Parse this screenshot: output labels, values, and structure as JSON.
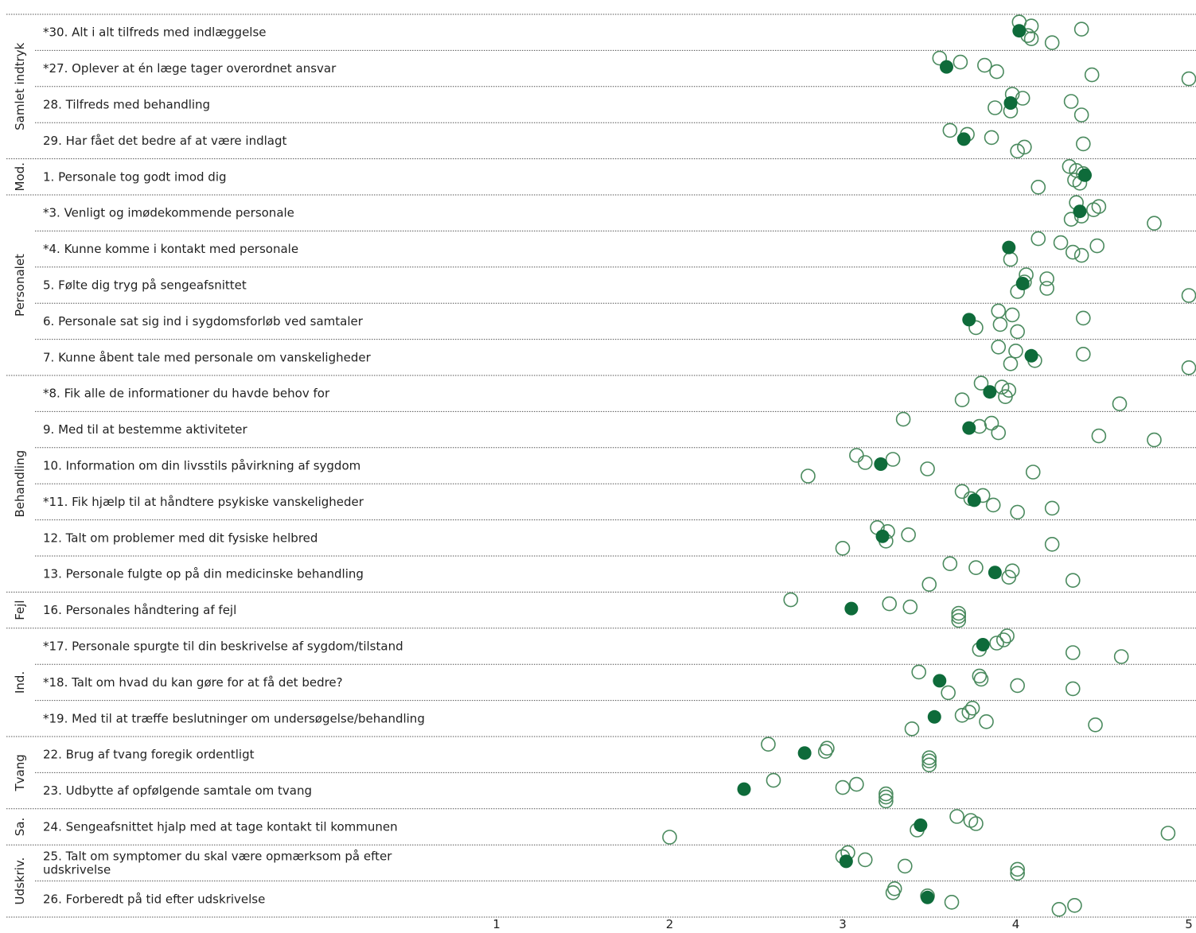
{
  "chart_data": {
    "type": "scatter",
    "title": "",
    "xlabel": "",
    "ylabel": "",
    "xlim": [
      0,
      5
    ],
    "xticks": [
      "1",
      "2",
      "3",
      "4",
      "5"
    ],
    "grid": true,
    "colors": {
      "highlight": "#0e6b3a",
      "others": "#4a8a5e",
      "grid": "#555555"
    },
    "groups": [
      {
        "name": "Samlet indtryk",
        "rows": [
          0,
          3
        ]
      },
      {
        "name": "Mod.",
        "rows": [
          4,
          4
        ]
      },
      {
        "name": "Personalet",
        "rows": [
          5,
          9
        ]
      },
      {
        "name": "Behandling",
        "rows": [
          10,
          15
        ]
      },
      {
        "name": "Fejl",
        "rows": [
          16,
          16
        ]
      },
      {
        "name": "Ind.",
        "rows": [
          17,
          19
        ]
      },
      {
        "name": "Tvang",
        "rows": [
          20,
          21
        ]
      },
      {
        "name": "Sa.",
        "rows": [
          22,
          22
        ]
      },
      {
        "name": "Udskriv.",
        "rows": [
          23,
          24
        ]
      }
    ],
    "questions": [
      {
        "label": "*30. Alt i alt tilfreds med indlæggelse",
        "value": 4.02,
        "others": [
          4.02,
          4.09,
          4.38,
          4.07,
          4.09,
          4.21
        ]
      },
      {
        "label": "*27. Oplever at én læge tager overordnet ansvar",
        "value": 3.6,
        "others": [
          3.56,
          3.68,
          3.82,
          3.89,
          4.44,
          5.0
        ]
      },
      {
        "label": "28. Tilfreds med behandling",
        "value": 3.97,
        "others": [
          3.98,
          4.04,
          4.32,
          3.88,
          3.97,
          4.38
        ]
      },
      {
        "label": "29. Har fået det bedre af at være indlagt",
        "value": 3.7,
        "others": [
          3.62,
          3.72,
          3.86,
          4.39,
          4.05,
          4.01
        ]
      },
      {
        "label": "1. Personale tog godt imod dig",
        "value": 4.4,
        "others": [
          4.31,
          4.35,
          4.39,
          4.34,
          4.37,
          4.13
        ]
      },
      {
        "label": "*3. Venligt og imødekommende personale",
        "value": 4.37,
        "others": [
          4.35,
          4.48,
          4.45,
          4.38,
          4.32,
          4.8
        ]
      },
      {
        "label": "*4. Kunne komme i kontakt med personale",
        "value": 3.96,
        "others": [
          4.13,
          4.26,
          4.47,
          4.33,
          4.38,
          3.97
        ]
      },
      {
        "label": "5. Følte dig tryg på sengeafsnittet",
        "value": 4.04,
        "others": [
          4.06,
          4.18,
          4.05,
          4.18,
          4.01,
          5.0
        ]
      },
      {
        "label": "6. Personale sat sig ind i sygdomsforløb ved samtaler",
        "value": 3.73,
        "others": [
          3.9,
          3.98,
          4.39,
          3.91,
          3.77,
          4.01
        ]
      },
      {
        "label": "7. Kunne åbent tale med personale om vanskeligheder",
        "value": 4.09,
        "others": [
          3.9,
          4.0,
          4.39,
          4.11,
          3.97,
          5.0
        ]
      },
      {
        "label": "*8. Fik alle de informationer du havde behov for",
        "value": 3.85,
        "others": [
          3.8,
          3.92,
          3.96,
          3.94,
          3.69,
          4.6
        ]
      },
      {
        "label": "9. Med til at bestemme aktiviteter",
        "value": 3.73,
        "others": [
          3.35,
          3.86,
          3.79,
          3.9,
          4.48,
          4.8
        ]
      },
      {
        "label": "10. Information om din livsstils påvirkning af sygdom",
        "value": 3.22,
        "others": [
          3.08,
          3.29,
          3.13,
          3.49,
          4.1,
          2.8
        ]
      },
      {
        "label": "*11. Fik hjælp til at håndtere psykiske vanskeligheder",
        "value": 3.76,
        "others": [
          3.69,
          3.81,
          3.74,
          3.87,
          4.21,
          4.01
        ]
      },
      {
        "label": "12. Talt om problemer med dit fysiske helbred",
        "value": 3.23,
        "others": [
          3.2,
          3.26,
          3.38,
          3.25,
          4.21,
          3.0
        ]
      },
      {
        "label": "13. Personale fulgte op på din medicinske behandling",
        "value": 3.88,
        "others": [
          3.62,
          3.77,
          3.98,
          3.96,
          4.33,
          3.5
        ]
      },
      {
        "label": "16. Personales håndtering af fejl",
        "value": 3.05,
        "others": [
          2.7,
          3.27,
          3.39,
          3.67,
          3.67,
          3.67
        ]
      },
      {
        "label": "*17. Personale spurgte til din beskrivelse af sygdom/tilstand",
        "value": 3.81,
        "others": [
          3.95,
          3.93,
          3.89,
          3.79,
          4.33,
          4.61
        ]
      },
      {
        "label": "*18. Talt om hvad du kan gøre for at få det bedre?",
        "value": 3.56,
        "others": [
          3.44,
          3.79,
          3.8,
          4.01,
          4.33,
          3.61
        ]
      },
      {
        "label": "*19. Med til at træffe beslutninger om undersøgelse/behandling",
        "value": 3.53,
        "others": [
          3.75,
          3.73,
          3.69,
          3.83,
          4.46,
          3.4
        ]
      },
      {
        "label": "22. Brug af tvang foregik ordentligt",
        "value": 2.78,
        "others": [
          2.57,
          2.91,
          2.9,
          3.5,
          3.5,
          3.5
        ]
      },
      {
        "label": "23. Udbytte af opfølgende samtale om tvang",
        "value": 2.43,
        "others": [
          2.6,
          3.08,
          3.0,
          3.25,
          3.25,
          3.25
        ]
      },
      {
        "label": "24. Sengeafsnittet hjalp med at tage kontakt til kommunen",
        "value": 3.45,
        "others": [
          3.66,
          3.74,
          3.77,
          3.43,
          4.88,
          2.0
        ]
      },
      {
        "label": "25. Talt om symptomer du skal være opmærksom på efter udskrivelse",
        "value": 3.02,
        "others": [
          3.03,
          3.0,
          3.13,
          3.36,
          4.01,
          4.01
        ]
      },
      {
        "label": "26. Forberedt på tid efter udskrivelse",
        "value": 3.49,
        "others": [
          3.3,
          3.29,
          3.49,
          3.63,
          4.34,
          4.25
        ]
      }
    ]
  }
}
